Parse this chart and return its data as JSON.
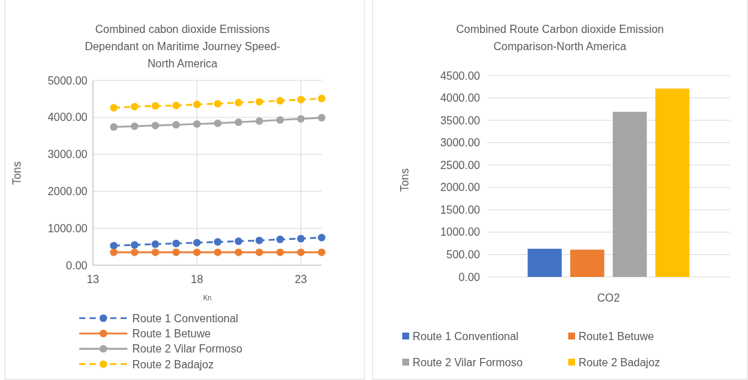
{
  "chart_data": [
    {
      "type": "line",
      "title": "Combined cabon dioxide Emissions Dependant on Maritime Journey Speed-North America",
      "xlabel": "Kn",
      "ylabel": "Tons",
      "x": [
        14,
        15,
        16,
        17,
        18,
        19,
        20,
        21,
        22,
        23,
        24
      ],
      "xlim": [
        13,
        24
      ],
      "xticks": [
        13,
        18,
        23
      ],
      "ylim": [
        0,
        5000
      ],
      "yticks": [
        {
          "value": 0,
          "label": "0.00"
        },
        {
          "value": 1000,
          "label": "1000.00"
        },
        {
          "value": 2000,
          "label": "2000.00"
        },
        {
          "value": 3000,
          "label": "3000.00"
        },
        {
          "value": 4000,
          "label": "4000.00"
        },
        {
          "value": 5000,
          "label": "5000.00"
        }
      ],
      "grid": true,
      "legend": "bottom",
      "marker": "circle",
      "series": [
        {
          "name": "Route 1 Conventional",
          "color": "#4472c4",
          "line_style": "dashed",
          "values": [
            530,
            550,
            570,
            590,
            610,
            630,
            650,
            670,
            700,
            720,
            750
          ]
        },
        {
          "name": "Route 1 Betuwe",
          "color": "#ed7d31",
          "line_style": "solid",
          "values": [
            350,
            350,
            350,
            350,
            350,
            350,
            350,
            350,
            350,
            350,
            350
          ]
        },
        {
          "name": "Route 2 Vilar Formoso",
          "color": "#a5a5a5",
          "line_style": "solid",
          "values": [
            3740,
            3760,
            3780,
            3800,
            3820,
            3840,
            3870,
            3900,
            3930,
            3960,
            3990
          ]
        },
        {
          "name": "Route 2 Badajoz",
          "color": "#ffc000",
          "line_style": "dashed",
          "values": [
            4260,
            4290,
            4310,
            4320,
            4350,
            4370,
            4400,
            4420,
            4450,
            4480,
            4510
          ]
        }
      ]
    },
    {
      "type": "bar",
      "title": "Combined Route Carbon dioxide Emission Comparison-North America",
      "ylabel": "Tons",
      "categories": [
        "CO2"
      ],
      "ylim": [
        0,
        4500
      ],
      "yticks": [
        {
          "value": 0,
          "label": "0.00"
        },
        {
          "value": 500,
          "label": "500.00"
        },
        {
          "value": 1000,
          "label": "1000.00"
        },
        {
          "value": 1500,
          "label": "1500.00"
        },
        {
          "value": 2000,
          "label": "2000.00"
        },
        {
          "value": 2500,
          "label": "2500.00"
        },
        {
          "value": 3000,
          "label": "3000.00"
        },
        {
          "value": 3500,
          "label": "3500.00"
        },
        {
          "value": 4000,
          "label": "4000.00"
        },
        {
          "value": 4500,
          "label": "4500.00"
        }
      ],
      "grid": "y",
      "legend": "bottom",
      "series": [
        {
          "name": "Route 1 Conventional",
          "color": "#4472c4",
          "values": [
            630
          ]
        },
        {
          "name": "Route1 Betuwe",
          "color": "#ed7d31",
          "values": [
            610
          ]
        },
        {
          "name": "Route 2  Vilar Formoso",
          "color": "#a5a5a5",
          "values": [
            3690
          ]
        },
        {
          "name": "Route 2 Badajoz",
          "color": "#ffc000",
          "values": [
            4210
          ]
        }
      ]
    }
  ]
}
